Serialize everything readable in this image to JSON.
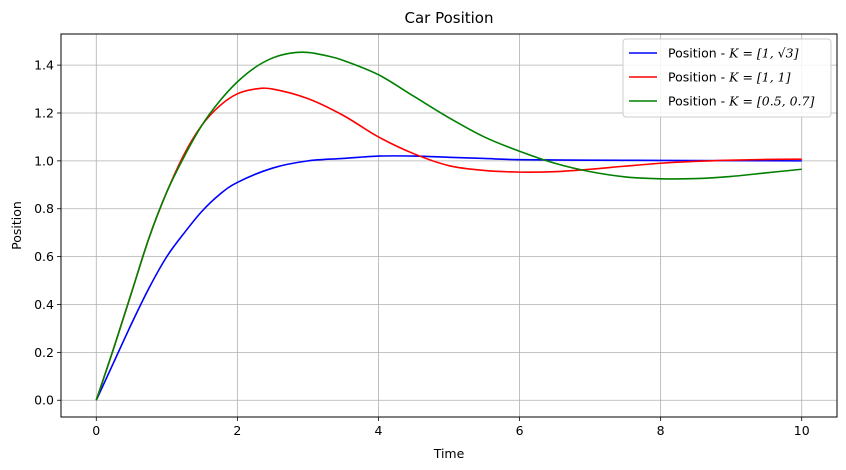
{
  "chart_data": {
    "type": "line",
    "title": "Car Position",
    "xlabel": "Time",
    "ylabel": "Position",
    "xlim": [
      -0.5,
      10.5
    ],
    "ylim": [
      -0.07,
      1.53
    ],
    "xticks": [
      0,
      2,
      4,
      6,
      8,
      10
    ],
    "yticks": [
      0.0,
      0.2,
      0.4,
      0.6,
      0.8,
      1.0,
      1.2,
      1.4
    ],
    "xtick_labels": [
      "0",
      "2",
      "4",
      "6",
      "8",
      "10"
    ],
    "ytick_labels": [
      "0.0",
      "0.2",
      "0.4",
      "0.6",
      "0.8",
      "1.0",
      "1.2",
      "1.4"
    ],
    "grid": true,
    "legend_position": "top-right",
    "series": [
      {
        "name": "Position - K = [1, √3]",
        "legend_prefix": "Position - ",
        "legend_math": "K = [1, √3]",
        "color": "#0000ff",
        "x": [
          0,
          0.25,
          0.5,
          0.75,
          1.0,
          1.25,
          1.5,
          1.75,
          2.0,
          2.5,
          3.0,
          3.5,
          4.0,
          4.5,
          5.0,
          5.5,
          6.0,
          7.0,
          8.0,
          9.0,
          10.0
        ],
        "y": [
          0,
          0.16,
          0.32,
          0.47,
          0.6,
          0.7,
          0.79,
          0.86,
          0.91,
          0.97,
          1.0,
          1.01,
          1.02,
          1.02,
          1.015,
          1.01,
          1.005,
          1.003,
          1.002,
          1.001,
          1.0
        ]
      },
      {
        "name": "Position - K = [1, 1]",
        "legend_prefix": "Position - ",
        "legend_math": "K = [1, 1]",
        "color": "#ff0000",
        "x": [
          0,
          0.25,
          0.5,
          0.75,
          1.0,
          1.25,
          1.5,
          1.75,
          2.0,
          2.25,
          2.5,
          3.0,
          3.5,
          4.0,
          4.5,
          5.0,
          5.5,
          6.0,
          6.5,
          7.0,
          7.5,
          8.0,
          8.5,
          9.0,
          9.5,
          10.0
        ],
        "y": [
          0,
          0.22,
          0.45,
          0.68,
          0.87,
          1.03,
          1.15,
          1.23,
          1.28,
          1.3,
          1.3,
          1.26,
          1.19,
          1.1,
          1.03,
          0.98,
          0.96,
          0.953,
          0.955,
          0.965,
          0.978,
          0.99,
          0.998,
          1.003,
          1.006,
          1.007
        ]
      },
      {
        "name": "Position - K = [0.5, 0.7]",
        "legend_prefix": "Position - ",
        "legend_math": "K = [0.5, 0.7]",
        "color": "#008000",
        "x": [
          0,
          0.25,
          0.5,
          0.75,
          1.0,
          1.25,
          1.5,
          1.75,
          2.0,
          2.25,
          2.5,
          2.75,
          3.0,
          3.25,
          3.5,
          4.0,
          4.5,
          5.0,
          5.5,
          6.0,
          6.5,
          7.0,
          7.5,
          8.0,
          8.5,
          9.0,
          9.5,
          10.0
        ],
        "y": [
          0,
          0.22,
          0.45,
          0.68,
          0.87,
          1.02,
          1.15,
          1.25,
          1.33,
          1.39,
          1.43,
          1.45,
          1.453,
          1.44,
          1.42,
          1.36,
          1.27,
          1.18,
          1.1,
          1.04,
          0.99,
          0.955,
          0.933,
          0.925,
          0.926,
          0.935,
          0.95,
          0.965
        ]
      }
    ]
  }
}
